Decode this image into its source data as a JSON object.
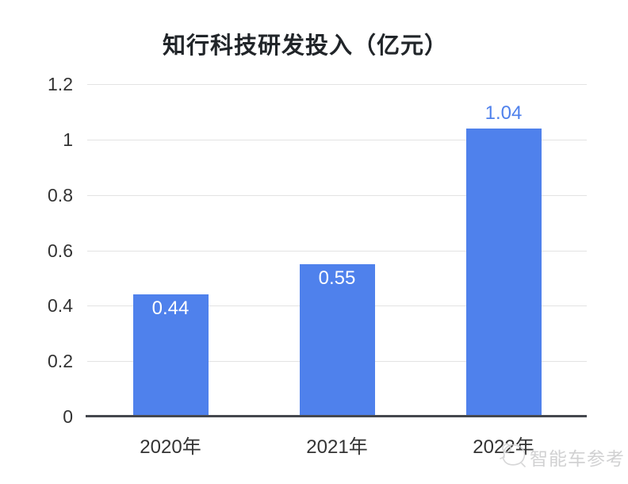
{
  "title": "知行科技研发投入（亿元）",
  "watermark": {
    "text": "智能车参考",
    "logo": "sketch-face-logo"
  },
  "colors": {
    "bar": "#4F81EC",
    "value_label_inside": "#ffffff",
    "value_label_above": "#4F81EC",
    "grid": "#e3e3e3",
    "axis": "#45484e",
    "tick_text": "#333333",
    "title_text": "#212529",
    "watermark_text": "#c9cacb",
    "background": "#ffffff"
  },
  "chart_data": {
    "type": "bar",
    "title": "知行科技研发投入（亿元）",
    "categories": [
      "2020年",
      "2021年",
      "2022年"
    ],
    "values": [
      0.44,
      0.55,
      1.04
    ],
    "value_labels": [
      "0.44",
      "0.55",
      "1.04"
    ],
    "value_label_positions": [
      "inside",
      "inside",
      "above"
    ],
    "xlabel": "",
    "ylabel": "",
    "ylim": [
      0,
      1.2
    ],
    "yticks": [
      0,
      0.2,
      0.4,
      0.6,
      0.8,
      1,
      1.2
    ],
    "ytick_labels": [
      "0",
      "0.2",
      "0.4",
      "0.6",
      "0.8",
      "1",
      "1.2"
    ],
    "grid": true,
    "legend": false,
    "bar_color": "#4F81EC"
  }
}
